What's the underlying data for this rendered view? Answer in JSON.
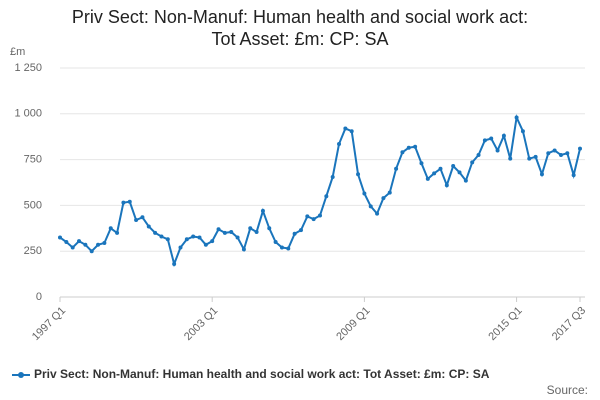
{
  "chart_data": {
    "type": "line",
    "title": [
      "Priv Sect: Non-Manuf: Human health and social work act:",
      "Tot Asset: £m: CP: SA"
    ],
    "y_label": "£m",
    "source_label": "Source:",
    "categories": [
      "1997 Q1",
      null,
      null,
      null,
      null,
      null,
      null,
      null,
      null,
      null,
      null,
      null,
      null,
      null,
      null,
      null,
      null,
      null,
      null,
      null,
      null,
      null,
      null,
      null,
      "2003 Q1",
      null,
      null,
      null,
      null,
      null,
      null,
      null,
      null,
      null,
      null,
      null,
      null,
      null,
      null,
      null,
      null,
      null,
      null,
      null,
      null,
      null,
      null,
      null,
      "2009 Q1",
      null,
      null,
      null,
      null,
      null,
      null,
      null,
      null,
      null,
      null,
      null,
      null,
      null,
      null,
      null,
      null,
      null,
      null,
      null,
      null,
      null,
      null,
      null,
      "2015 Q1",
      null,
      null,
      null,
      null,
      null,
      null,
      null,
      null,
      null,
      "2017 Q3"
    ],
    "series": [
      {
        "name": "Priv Sect: Non-Manuf: Human health and social work act: Tot Asset: £m: CP: SA",
        "color": "#1a75bc",
        "values": [
          325,
          300,
          270,
          305,
          285,
          250,
          285,
          295,
          375,
          350,
          515,
          520,
          420,
          435,
          385,
          350,
          330,
          315,
          180,
          270,
          315,
          330,
          325,
          285,
          305,
          370,
          350,
          355,
          325,
          260,
          375,
          355,
          470,
          375,
          300,
          270,
          265,
          345,
          365,
          440,
          425,
          445,
          550,
          655,
          835,
          920,
          905,
          670,
          565,
          495,
          455,
          540,
          570,
          700,
          790,
          815,
          820,
          730,
          645,
          675,
          700,
          610,
          715,
          680,
          635,
          735,
          775,
          855,
          865,
          800,
          880,
          755,
          980,
          905,
          755,
          765,
          670,
          785,
          800,
          775,
          785,
          665,
          810
        ]
      }
    ],
    "ylim": [
      0,
      1250
    ],
    "yticks": [
      0,
      250,
      500,
      750,
      {
        "value": 1000,
        "label": "1 000"
      },
      {
        "value": 1250,
        "label": "1 250"
      }
    ],
    "grid": true
  }
}
